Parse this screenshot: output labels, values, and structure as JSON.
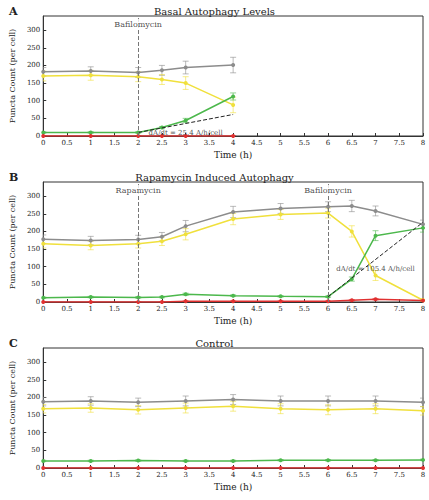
{
  "chart_data": [
    {
      "type": "line",
      "label": "A",
      "title": "Basal Autophagy Levels",
      "x_label": "Time (h)",
      "y_label": "Puncta Count (per cell)",
      "xlim": [
        0,
        8
      ],
      "xticks": [
        0,
        0.5,
        1,
        1.5,
        2,
        2.5,
        3,
        3.5,
        4,
        4.5,
        5,
        5.5,
        6,
        6.5,
        7,
        7.5,
        8
      ],
      "ylim": [
        0,
        340
      ],
      "yticks": [
        0,
        50,
        100,
        150,
        200,
        250,
        300
      ],
      "grid": false,
      "x": [
        0,
        1,
        2,
        2.5,
        3,
        4
      ],
      "series": [
        {
          "color": "#8c8c8c",
          "marker": "circle",
          "values": [
            182,
            184,
            180,
            186,
            194,
            201
          ],
          "errors": [
            12,
            12,
            14,
            14,
            18,
            22
          ]
        },
        {
          "color": "#f0e03c",
          "marker": "circle",
          "values": [
            170,
            172,
            168,
            160,
            150,
            88
          ],
          "errors": [
            14,
            14,
            14,
            14,
            18,
            22
          ]
        },
        {
          "color": "#4cb84c",
          "marker": "circle",
          "values": [
            10,
            10,
            10,
            24,
            44,
            112
          ],
          "errors": [
            2,
            2,
            2,
            3,
            6,
            10
          ]
        },
        {
          "color": "#e03030",
          "marker": "circle",
          "values": [
            0,
            0,
            0,
            0,
            0,
            0
          ],
          "errors": [
            1,
            1,
            1,
            1,
            1,
            1
          ]
        }
      ],
      "events": [
        {
          "x": 2,
          "text": "Bafilomycin"
        }
      ],
      "fit": {
        "x": [
          2,
          4
        ],
        "values": [
          10,
          61
        ],
        "text": "dA/dt = 25.4 A/h/cell"
      }
    },
    {
      "type": "line",
      "label": "B",
      "title": "Rapamycin Induced Autophagy",
      "x_label": "Time (h)",
      "y_label": "Puncta Count (per cell)",
      "xlim": [
        0,
        8
      ],
      "xticks": [
        0,
        0.5,
        1,
        1.5,
        2,
        2.5,
        3,
        3.5,
        4,
        4.5,
        5,
        5.5,
        6,
        6.5,
        7,
        7.5,
        8
      ],
      "ylim": [
        0,
        340
      ],
      "yticks": [
        0,
        50,
        100,
        150,
        200,
        250,
        300
      ],
      "grid": false,
      "x": [
        0,
        1,
        2,
        2.5,
        3,
        4,
        5,
        6,
        6.5,
        7,
        8
      ],
      "series": [
        {
          "color": "#8c8c8c",
          "marker": "circle",
          "values": [
            178,
            174,
            177,
            185,
            215,
            255,
            265,
            270,
            272,
            258,
            220
          ],
          "errors": [
            12,
            12,
            12,
            12,
            16,
            16,
            14,
            14,
            16,
            14,
            12
          ]
        },
        {
          "color": "#f0e03c",
          "marker": "circle",
          "values": [
            165,
            160,
            165,
            172,
            192,
            235,
            248,
            252,
            200,
            75,
            5
          ],
          "errors": [
            12,
            12,
            12,
            12,
            16,
            16,
            14,
            14,
            16,
            14,
            4
          ]
        },
        {
          "color": "#4cb84c",
          "marker": "circle",
          "values": [
            12,
            14,
            13,
            14,
            22,
            18,
            16,
            15,
            65,
            188,
            210
          ],
          "errors": [
            2,
            2,
            2,
            2,
            3,
            2,
            2,
            2,
            6,
            14,
            12
          ]
        },
        {
          "color": "#e03030",
          "marker": "circle",
          "values": [
            0,
            0,
            0,
            0,
            2,
            2,
            2,
            2,
            5,
            8,
            4
          ],
          "errors": [
            1,
            1,
            1,
            1,
            1,
            1,
            1,
            1,
            2,
            2,
            2
          ]
        }
      ],
      "events": [
        {
          "x": 2,
          "text": "Rapamycin"
        },
        {
          "x": 6,
          "text": "Bafilomycin"
        }
      ],
      "fit": {
        "x": [
          6,
          8
        ],
        "values": [
          15,
          226
        ],
        "text": "dA/dt = 105.4 A/h/cell"
      }
    },
    {
      "type": "line",
      "label": "C",
      "title": "Control",
      "x_label": "Time (h)",
      "y_label": "Puncta Count (per cell)",
      "xlim": [
        0,
        8
      ],
      "xticks": [
        0,
        0.5,
        1,
        1.5,
        2,
        2.5,
        3,
        3.5,
        4,
        4.5,
        5,
        5.5,
        6,
        6.5,
        7,
        7.5,
        8
      ],
      "ylim": [
        0,
        340
      ],
      "yticks": [
        0,
        50,
        100,
        150,
        200,
        250,
        300
      ],
      "grid": false,
      "x": [
        0,
        1,
        2,
        3,
        4,
        5,
        6,
        7,
        8
      ],
      "series": [
        {
          "color": "#8c8c8c",
          "marker": "circle",
          "values": [
            188,
            190,
            186,
            190,
            194,
            190,
            190,
            190,
            186
          ],
          "errors": [
            12,
            12,
            12,
            14,
            14,
            14,
            14,
            14,
            12
          ]
        },
        {
          "color": "#f0e03c",
          "marker": "circle",
          "values": [
            168,
            170,
            165,
            170,
            175,
            168,
            165,
            168,
            162
          ],
          "errors": [
            12,
            12,
            12,
            14,
            14,
            14,
            14,
            14,
            12
          ]
        },
        {
          "color": "#4cb84c",
          "marker": "circle",
          "values": [
            20,
            20,
            21,
            20,
            20,
            22,
            22,
            22,
            23
          ],
          "errors": [
            2,
            2,
            2,
            2,
            2,
            2,
            2,
            2,
            2
          ]
        },
        {
          "color": "#e03030",
          "marker": "circle",
          "values": [
            0,
            0,
            0,
            0,
            0,
            0,
            0,
            0,
            0
          ],
          "errors": [
            1,
            1,
            1,
            1,
            1,
            1,
            1,
            1,
            1
          ]
        }
      ]
    }
  ]
}
